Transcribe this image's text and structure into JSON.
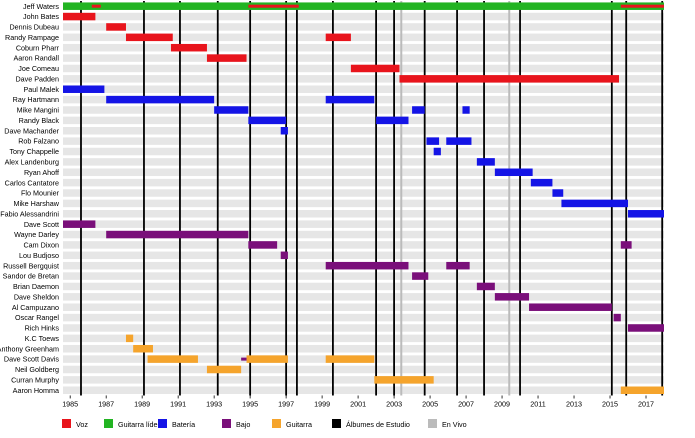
{
  "chart_data": {
    "type": "timeline",
    "title": "",
    "xlim": [
      1984.6,
      2018.0
    ],
    "x_ticks": [
      1985,
      1987,
      1989,
      1991,
      1993,
      1995,
      1997,
      1999,
      2001,
      2003,
      2005,
      2007,
      2009,
      2011,
      2013,
      2015,
      2017
    ],
    "grid": true,
    "legend_position": "bottom",
    "roles": {
      "voz": {
        "label": "Voz",
        "color": "#e8141c"
      },
      "guitarra_lider": {
        "label": "Guitarra líder",
        "color": "#22b422"
      },
      "bateria": {
        "label": "Batería",
        "color": "#1414e6"
      },
      "bajo": {
        "label": "Bajo",
        "color": "#7a0f7a"
      },
      "guitarra": {
        "label": "Guitarra",
        "color": "#f5a42c"
      },
      "albumes": {
        "label": "Álbumes de Estudio",
        "color": "#000000"
      },
      "en_vivo": {
        "label": "En Vivo",
        "color": "#bbbbbb"
      }
    },
    "legend": [
      "voz",
      "guitarra_lider",
      "bateria",
      "bajo",
      "guitarra",
      "albumes",
      "en_vivo"
    ],
    "studio_albums": [
      1985.6,
      1989.1,
      1991.1,
      1993.2,
      1995.0,
      1997.0,
      1997.6,
      1999.6,
      2002.0,
      2003.0,
      2004.7,
      2006.5,
      2008.0,
      2010.0,
      2015.1,
      2015.9,
      2017.9
    ],
    "live_albums": [
      2003.4,
      2009.4
    ],
    "members": [
      {
        "name": "Jeff Waters",
        "bars": [
          {
            "role": "guitarra_lider",
            "start": 1984.6,
            "end": 2018.0
          }
        ],
        "overlays": [
          {
            "role": "voz",
            "start": 1986.2,
            "end": 1986.7
          },
          {
            "role": "voz",
            "start": 1994.9,
            "end": 1997.7
          },
          {
            "role": "voz",
            "start": 2015.6,
            "end": 2018.0
          }
        ]
      },
      {
        "name": "John Bates",
        "bars": [
          {
            "role": "voz",
            "start": 1984.6,
            "end": 1986.4
          }
        ]
      },
      {
        "name": "Dennis Dubeau",
        "bars": [
          {
            "role": "voz",
            "start": 1987.0,
            "end": 1988.1
          }
        ]
      },
      {
        "name": "Randy Rampage",
        "bars": [
          {
            "role": "voz",
            "start": 1988.1,
            "end": 1990.7
          },
          {
            "role": "voz",
            "start": 1999.2,
            "end": 2000.6
          }
        ]
      },
      {
        "name": "Coburn Pharr",
        "bars": [
          {
            "role": "voz",
            "start": 1990.6,
            "end": 1992.6
          }
        ]
      },
      {
        "name": "Aaron Randall",
        "bars": [
          {
            "role": "voz",
            "start": 1992.6,
            "end": 1994.8
          }
        ]
      },
      {
        "name": "Joe Comeau",
        "bars": [
          {
            "role": "voz",
            "start": 2000.6,
            "end": 2003.3
          }
        ]
      },
      {
        "name": "Dave Padden",
        "bars": [
          {
            "role": "voz",
            "start": 2003.3,
            "end": 2015.5
          }
        ]
      },
      {
        "name": "Paul Malek",
        "bars": [
          {
            "role": "bateria",
            "start": 1984.6,
            "end": 1986.9
          }
        ]
      },
      {
        "name": "Ray Hartmann",
        "bars": [
          {
            "role": "bateria",
            "start": 1987.0,
            "end": 1993.0
          },
          {
            "role": "bateria",
            "start": 1999.2,
            "end": 2001.9
          }
        ]
      },
      {
        "name": "Mike Mangini",
        "bars": [
          {
            "role": "bateria",
            "start": 1993.0,
            "end": 1994.9
          },
          {
            "role": "bateria",
            "start": 2004.0,
            "end": 2004.7
          },
          {
            "role": "bateria",
            "start": 2006.8,
            "end": 2007.2
          }
        ]
      },
      {
        "name": "Randy Black",
        "bars": [
          {
            "role": "bateria",
            "start": 1994.9,
            "end": 1997.0
          },
          {
            "role": "bateria",
            "start": 2002.0,
            "end": 2003.8
          }
        ]
      },
      {
        "name": "Dave Machander",
        "bars": [
          {
            "role": "bateria",
            "start": 1996.7,
            "end": 1997.1
          }
        ]
      },
      {
        "name": "Rob Falzano",
        "bars": [
          {
            "role": "bateria",
            "start": 2004.8,
            "end": 2005.5
          },
          {
            "role": "bateria",
            "start": 2005.9,
            "end": 2007.3
          }
        ]
      },
      {
        "name": "Tony Chappelle",
        "bars": [
          {
            "role": "bateria",
            "start": 2005.2,
            "end": 2005.6
          }
        ]
      },
      {
        "name": "Alex Landenburg",
        "bars": [
          {
            "role": "bateria",
            "start": 2007.6,
            "end": 2008.6
          }
        ]
      },
      {
        "name": "Ryan Ahoff",
        "bars": [
          {
            "role": "bateria",
            "start": 2008.6,
            "end": 2010.7
          }
        ]
      },
      {
        "name": "Carlos Cantatore",
        "bars": [
          {
            "role": "bateria",
            "start": 2010.6,
            "end": 2011.8
          }
        ]
      },
      {
        "name": "Flo Mounier",
        "bars": [
          {
            "role": "bateria",
            "start": 2011.8,
            "end": 2012.4
          }
        ]
      },
      {
        "name": "Mike Harshaw",
        "bars": [
          {
            "role": "bateria",
            "start": 2012.3,
            "end": 2016.0
          }
        ]
      },
      {
        "name": "Fabio Alessandrini",
        "bars": [
          {
            "role": "bateria",
            "start": 2016.0,
            "end": 2018.0
          }
        ]
      },
      {
        "name": "Dave Scott",
        "bars": [
          {
            "role": "bajo",
            "start": 1984.6,
            "end": 1986.4
          }
        ]
      },
      {
        "name": "Wayne Darley",
        "bars": [
          {
            "role": "bajo",
            "start": 1987.0,
            "end": 1994.9
          }
        ]
      },
      {
        "name": "Cam Dixon",
        "bars": [
          {
            "role": "bajo",
            "start": 1994.9,
            "end": 1996.5
          },
          {
            "role": "bajo",
            "start": 2015.6,
            "end": 2016.2
          }
        ]
      },
      {
        "name": "Lou Budjoso",
        "bars": [
          {
            "role": "bajo",
            "start": 1996.7,
            "end": 1997.1
          }
        ]
      },
      {
        "name": "Russell Bergquist",
        "bars": [
          {
            "role": "bajo",
            "start": 1999.2,
            "end": 2003.8
          },
          {
            "role": "bajo",
            "start": 2005.9,
            "end": 2007.2
          }
        ]
      },
      {
        "name": "Sandor de Bretan",
        "bars": [
          {
            "role": "bajo",
            "start": 2004.0,
            "end": 2004.9
          }
        ]
      },
      {
        "name": "Brian Daemon",
        "bars": [
          {
            "role": "bajo",
            "start": 2007.6,
            "end": 2008.6
          }
        ]
      },
      {
        "name": "Dave Sheldon",
        "bars": [
          {
            "role": "bajo",
            "start": 2008.6,
            "end": 2010.5
          }
        ]
      },
      {
        "name": "Al Campuzano",
        "bars": [
          {
            "role": "bajo",
            "start": 2010.5,
            "end": 2015.1
          }
        ]
      },
      {
        "name": "Oscar Rangel",
        "bars": [
          {
            "role": "bajo",
            "start": 2015.2,
            "end": 2015.6
          }
        ]
      },
      {
        "name": "Rich Hinks",
        "bars": [
          {
            "role": "bajo",
            "start": 2016.0,
            "end": 2018.0
          }
        ]
      },
      {
        "name": "K.C Toews",
        "bars": [
          {
            "role": "guitarra",
            "start": 1988.1,
            "end": 1988.5
          }
        ]
      },
      {
        "name": "Anthony Greenham",
        "bars": [
          {
            "role": "guitarra",
            "start": 1988.5,
            "end": 1989.6
          }
        ]
      },
      {
        "name": "Dave Scott Davis",
        "bars": [
          {
            "role": "guitarra",
            "start": 1989.3,
            "end": 1992.1
          },
          {
            "role": "guitarra",
            "start": 1994.8,
            "end": 1997.1
          },
          {
            "role": "guitarra",
            "start": 1999.2,
            "end": 2001.9
          }
        ],
        "overlays": [
          {
            "role": "bajo",
            "start": 1994.5,
            "end": 1994.8
          }
        ]
      },
      {
        "name": "Neil Goldberg",
        "bars": [
          {
            "role": "guitarra",
            "start": 1992.6,
            "end": 1994.5
          }
        ]
      },
      {
        "name": "Curran Murphy",
        "bars": [
          {
            "role": "guitarra",
            "start": 2001.9,
            "end": 2005.2
          }
        ]
      },
      {
        "name": "Aaron Homma",
        "bars": [
          {
            "role": "guitarra",
            "start": 2015.6,
            "end": 2018.0
          }
        ]
      }
    ]
  }
}
